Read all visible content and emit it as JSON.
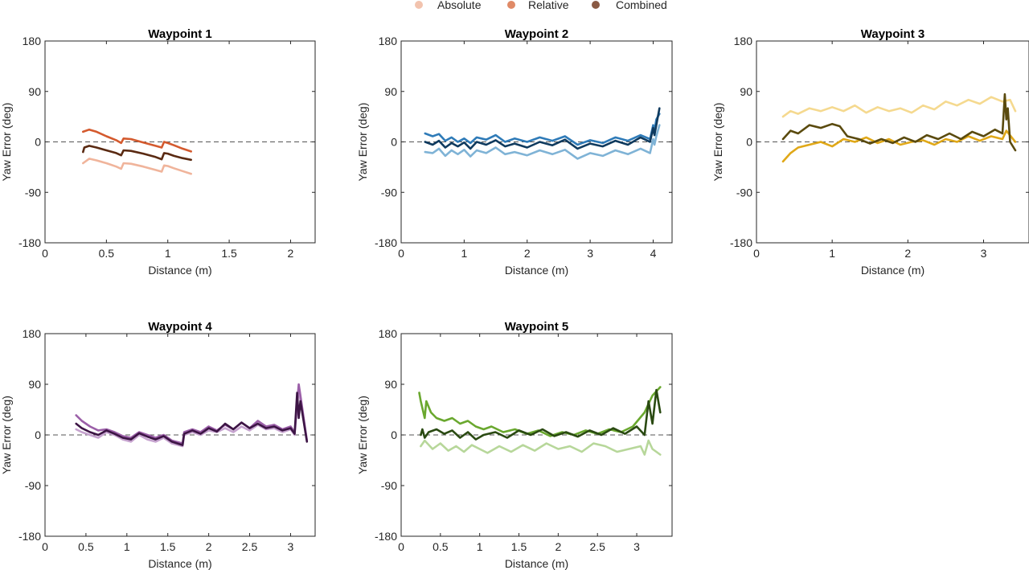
{
  "legend": {
    "items": [
      {
        "label": "Absolute",
        "color": "#f2c3ae"
      },
      {
        "label": "Relative",
        "color": "#e08a67"
      },
      {
        "label": "Combined",
        "color": "#8a5a44"
      }
    ]
  },
  "chart_data": [
    {
      "type": "line",
      "title": "Waypoint 1",
      "xlabel": "Distance (m)",
      "ylabel": "Yaw Error (deg)",
      "xlim": [
        0,
        2.2
      ],
      "ylim": [
        -180,
        180
      ],
      "xticks": [
        0,
        0.5,
        1,
        1.5,
        2
      ],
      "xtick_labels": [
        "0",
        "0.5",
        "1",
        "1.5",
        "2"
      ],
      "yticks": [
        -180,
        -90,
        0,
        90,
        180
      ],
      "ytick_labels": [
        "-180",
        "-90",
        "0",
        "90",
        "180"
      ],
      "reference_line_y": 0,
      "series": [
        {
          "name": "Absolute",
          "color": "#f0b49b",
          "x": [
            0.31,
            0.36,
            0.42,
            0.5,
            0.58,
            0.62,
            0.64,
            0.7,
            0.8,
            0.9,
            0.95,
            0.97,
            1.0,
            1.05,
            1.12,
            1.19
          ],
          "y": [
            -38,
            -30,
            -33,
            -38,
            -44,
            -48,
            -38,
            -39,
            -44,
            -50,
            -53,
            -42,
            -43,
            -47,
            -52,
            -57
          ]
        },
        {
          "name": "Relative",
          "color": "#d45a2e",
          "x": [
            0.31,
            0.36,
            0.42,
            0.5,
            0.58,
            0.62,
            0.64,
            0.7,
            0.8,
            0.9,
            0.95,
            0.97,
            1.0,
            1.05,
            1.12,
            1.19
          ],
          "y": [
            18,
            22,
            18,
            10,
            3,
            -2,
            6,
            5,
            -1,
            -7,
            -10,
            0,
            -2,
            -6,
            -12,
            -17
          ]
        },
        {
          "name": "Combined",
          "color": "#5a2a12",
          "x": [
            0.31,
            0.32,
            0.36,
            0.42,
            0.5,
            0.58,
            0.62,
            0.64,
            0.7,
            0.8,
            0.9,
            0.95,
            0.97,
            1.0,
            1.05,
            1.12,
            1.19
          ],
          "y": [
            -18,
            -10,
            -7,
            -10,
            -15,
            -20,
            -24,
            -15,
            -16,
            -21,
            -27,
            -31,
            -20,
            -21,
            -25,
            -29,
            -32
          ]
        }
      ]
    },
    {
      "type": "line",
      "title": "Waypoint 2",
      "xlabel": "Distance (m)",
      "ylabel": "Yaw Error (deg)",
      "xlim": [
        0,
        4.3
      ],
      "ylim": [
        -180,
        180
      ],
      "xticks": [
        0,
        1,
        2,
        3,
        4
      ],
      "xtick_labels": [
        "0",
        "1",
        "2",
        "3",
        "4"
      ],
      "yticks": [
        -180,
        -90,
        0,
        90,
        180
      ],
      "ytick_labels": [
        "-180",
        "-90",
        "0",
        "90",
        "180"
      ],
      "reference_line_y": 0,
      "series": [
        {
          "name": "Absolute",
          "color": "#7fb3d6",
          "x": [
            0.38,
            0.5,
            0.6,
            0.7,
            0.8,
            0.9,
            1.0,
            1.1,
            1.2,
            1.35,
            1.5,
            1.65,
            1.8,
            2.0,
            2.2,
            2.4,
            2.6,
            2.8,
            3.0,
            3.2,
            3.4,
            3.6,
            3.8,
            3.95,
            4.0,
            4.02,
            4.05,
            4.1
          ],
          "y": [
            -18,
            -20,
            -12,
            -25,
            -15,
            -22,
            -14,
            -26,
            -15,
            -20,
            -10,
            -22,
            -18,
            -24,
            -15,
            -22,
            -14,
            -30,
            -20,
            -25,
            -15,
            -22,
            -12,
            -20,
            5,
            -5,
            10,
            30
          ]
        },
        {
          "name": "Relative",
          "color": "#2f7bb8",
          "x": [
            0.38,
            0.5,
            0.6,
            0.7,
            0.8,
            0.9,
            1.0,
            1.1,
            1.2,
            1.35,
            1.5,
            1.65,
            1.8,
            2.0,
            2.2,
            2.4,
            2.6,
            2.8,
            3.0,
            3.2,
            3.4,
            3.6,
            3.8,
            3.95,
            4.0,
            4.02,
            4.05,
            4.1
          ],
          "y": [
            15,
            10,
            14,
            2,
            8,
            0,
            6,
            -2,
            8,
            4,
            12,
            0,
            6,
            0,
            8,
            2,
            10,
            -5,
            3,
            -2,
            8,
            2,
            12,
            5,
            30,
            20,
            40,
            50
          ]
        },
        {
          "name": "Combined",
          "color": "#0f3a5e",
          "x": [
            0.38,
            0.5,
            0.6,
            0.7,
            0.8,
            0.9,
            1.0,
            1.1,
            1.2,
            1.35,
            1.5,
            1.65,
            1.8,
            2.0,
            2.2,
            2.4,
            2.6,
            2.8,
            3.0,
            3.2,
            3.4,
            3.6,
            3.8,
            3.95,
            4.0,
            4.02,
            4.05,
            4.1
          ],
          "y": [
            0,
            -5,
            2,
            -10,
            -2,
            -8,
            -1,
            -12,
            0,
            -5,
            3,
            -8,
            -3,
            -10,
            0,
            -6,
            4,
            -12,
            -3,
            -8,
            2,
            -5,
            8,
            0,
            25,
            12,
            30,
            60
          ]
        }
      ]
    },
    {
      "type": "line",
      "title": "Waypoint 3",
      "xlabel": "Distance (m)",
      "ylabel": "Yaw Error (deg)",
      "xlim": [
        0,
        3.6
      ],
      "ylim": [
        -180,
        180
      ],
      "xticks": [
        0,
        1,
        2,
        3
      ],
      "xtick_labels": [
        "0",
        "1",
        "2",
        "3"
      ],
      "yticks": [
        -180,
        -90,
        0,
        90,
        180
      ],
      "ytick_labels": [
        "-180",
        "-90",
        "0",
        "90",
        "180"
      ],
      "reference_line_y": 0,
      "series": [
        {
          "name": "Absolute",
          "color": "#f5d98f",
          "x": [
            0.35,
            0.45,
            0.55,
            0.7,
            0.85,
            1.0,
            1.15,
            1.3,
            1.45,
            1.6,
            1.75,
            1.9,
            2.05,
            2.2,
            2.35,
            2.5,
            2.65,
            2.8,
            2.95,
            3.1,
            3.25,
            3.35,
            3.42
          ],
          "y": [
            45,
            55,
            50,
            60,
            55,
            62,
            55,
            65,
            52,
            62,
            55,
            60,
            52,
            65,
            58,
            72,
            65,
            75,
            68,
            80,
            72,
            75,
            55
          ]
        },
        {
          "name": "Relative",
          "color": "#e0a818",
          "x": [
            0.35,
            0.45,
            0.55,
            0.7,
            0.85,
            1.0,
            1.15,
            1.3,
            1.45,
            1.6,
            1.75,
            1.9,
            2.05,
            2.2,
            2.35,
            2.5,
            2.65,
            2.8,
            2.95,
            3.1,
            3.25,
            3.3,
            3.42
          ],
          "y": [
            -35,
            -20,
            -10,
            -5,
            0,
            -8,
            5,
            0,
            8,
            -2,
            5,
            -5,
            0,
            3,
            -5,
            5,
            0,
            10,
            2,
            10,
            5,
            20,
            0
          ]
        },
        {
          "name": "Combined",
          "color": "#5a4a0e",
          "x": [
            0.35,
            0.45,
            0.55,
            0.7,
            0.85,
            1.0,
            1.1,
            1.2,
            1.35,
            1.5,
            1.65,
            1.8,
            1.95,
            2.1,
            2.25,
            2.4,
            2.55,
            2.7,
            2.85,
            3.0,
            3.15,
            3.25,
            3.28,
            3.3,
            3.32,
            3.35,
            3.42
          ],
          "y": [
            5,
            20,
            15,
            30,
            25,
            32,
            28,
            10,
            5,
            -3,
            5,
            -2,
            8,
            0,
            12,
            5,
            15,
            5,
            18,
            10,
            22,
            15,
            85,
            40,
            60,
            0,
            -15
          ]
        }
      ]
    },
    {
      "type": "line",
      "title": "Waypoint 4",
      "xlabel": "Distance (m)",
      "ylabel": "Yaw Error (deg)",
      "xlim": [
        0,
        3.3
      ],
      "ylim": [
        -180,
        180
      ],
      "xticks": [
        0,
        0.5,
        1,
        1.5,
        2,
        2.5,
        3
      ],
      "xtick_labels": [
        "0",
        "0.5",
        "1",
        "1.5",
        "2",
        "2.5",
        "3"
      ],
      "yticks": [
        -180,
        -90,
        0,
        90,
        180
      ],
      "ytick_labels": [
        "-180",
        "-90",
        "0",
        "90",
        "180"
      ],
      "reference_line_y": 0,
      "series": [
        {
          "name": "Absolute",
          "color": "#c6a3cf",
          "x": [
            0.38,
            0.45,
            0.55,
            0.65,
            0.75,
            0.85,
            0.95,
            1.05,
            1.15,
            1.25,
            1.35,
            1.45,
            1.55,
            1.68,
            1.7,
            1.8,
            1.9,
            2.0,
            2.1,
            2.2,
            2.3,
            2.4,
            2.5,
            2.6,
            2.7,
            2.8,
            2.9,
            3.0,
            3.05,
            3.1,
            3.12,
            3.2
          ],
          "y": [
            10,
            5,
            0,
            -5,
            5,
            0,
            -8,
            -12,
            0,
            -8,
            -12,
            -5,
            -15,
            -20,
            0,
            5,
            0,
            8,
            5,
            12,
            5,
            15,
            8,
            18,
            10,
            12,
            5,
            10,
            0,
            85,
            60,
            -10
          ]
        },
        {
          "name": "Relative",
          "color": "#9b5fa8",
          "x": [
            0.38,
            0.45,
            0.55,
            0.65,
            0.75,
            0.85,
            0.95,
            1.05,
            1.15,
            1.25,
            1.35,
            1.45,
            1.55,
            1.68,
            1.7,
            1.8,
            1.9,
            2.0,
            2.1,
            2.2,
            2.3,
            2.4,
            2.5,
            2.6,
            2.7,
            2.8,
            2.9,
            3.0,
            3.05,
            3.1,
            3.12,
            3.2
          ],
          "y": [
            35,
            25,
            15,
            8,
            10,
            5,
            -2,
            -5,
            5,
            0,
            -5,
            0,
            -10,
            -15,
            5,
            10,
            5,
            15,
            8,
            18,
            10,
            22,
            12,
            25,
            15,
            18,
            10,
            15,
            5,
            90,
            70,
            -10
          ]
        },
        {
          "name": "Combined",
          "color": "#3d1545",
          "x": [
            0.38,
            0.45,
            0.55,
            0.65,
            0.75,
            0.85,
            0.95,
            1.05,
            1.15,
            1.25,
            1.35,
            1.45,
            1.55,
            1.68,
            1.7,
            1.8,
            1.9,
            2.0,
            2.1,
            2.2,
            2.3,
            2.4,
            2.5,
            2.6,
            2.7,
            2.8,
            2.9,
            3.0,
            3.05,
            3.08,
            3.1,
            3.12,
            3.2
          ],
          "y": [
            20,
            12,
            5,
            0,
            8,
            2,
            -5,
            -8,
            3,
            -3,
            -8,
            -2,
            -12,
            -18,
            2,
            8,
            2,
            12,
            6,
            20,
            10,
            22,
            12,
            20,
            12,
            15,
            8,
            12,
            2,
            75,
            30,
            60,
            -12
          ]
        }
      ]
    },
    {
      "type": "line",
      "title": "Waypoint 5",
      "xlabel": "Distance (m)",
      "ylabel": "Yaw Error (deg)",
      "xlim": [
        0,
        3.45
      ],
      "ylim": [
        -180,
        180
      ],
      "xticks": [
        0,
        0.5,
        1,
        1.5,
        2,
        2.5,
        3
      ],
      "xtick_labels": [
        "0",
        "0.5",
        "1",
        "1.5",
        "2",
        "2.5",
        "3"
      ],
      "yticks": [
        -180,
        -90,
        0,
        90,
        180
      ],
      "ytick_labels": [
        "-180",
        "-90",
        "0",
        "90",
        "180"
      ],
      "reference_line_y": 0,
      "series": [
        {
          "name": "Absolute",
          "color": "#b7d79a",
          "x": [
            0.25,
            0.3,
            0.4,
            0.5,
            0.6,
            0.7,
            0.8,
            0.9,
            1.0,
            1.1,
            1.25,
            1.4,
            1.55,
            1.7,
            1.85,
            2.0,
            2.15,
            2.3,
            2.45,
            2.6,
            2.75,
            2.9,
            3.05,
            3.1,
            3.15,
            3.2,
            3.25,
            3.3
          ],
          "y": [
            -20,
            -10,
            -25,
            -15,
            -28,
            -20,
            -30,
            -18,
            -25,
            -32,
            -20,
            -30,
            -18,
            -28,
            -15,
            -25,
            -20,
            -30,
            -15,
            -20,
            -30,
            -25,
            -20,
            -35,
            -10,
            -25,
            -30,
            -35
          ]
        },
        {
          "name": "Relative",
          "color": "#6aa82f",
          "x": [
            0.23,
            0.25,
            0.3,
            0.32,
            0.38,
            0.45,
            0.55,
            0.65,
            0.75,
            0.85,
            0.95,
            1.05,
            1.15,
            1.3,
            1.45,
            1.6,
            1.75,
            1.9,
            2.05,
            2.2,
            2.35,
            2.5,
            2.65,
            2.8,
            2.95,
            3.1,
            3.2,
            3.3
          ],
          "y": [
            75,
            60,
            30,
            60,
            40,
            30,
            25,
            30,
            20,
            25,
            15,
            10,
            15,
            5,
            10,
            2,
            8,
            -2,
            5,
            0,
            8,
            2,
            10,
            5,
            15,
            40,
            70,
            85
          ]
        },
        {
          "name": "Combined",
          "color": "#2a4a12",
          "x": [
            0.25,
            0.27,
            0.3,
            0.35,
            0.45,
            0.55,
            0.65,
            0.75,
            0.85,
            0.95,
            1.05,
            1.2,
            1.35,
            1.5,
            1.65,
            1.8,
            1.95,
            2.1,
            2.25,
            2.4,
            2.55,
            2.7,
            2.85,
            3.0,
            3.1,
            3.15,
            3.2,
            3.25,
            3.3
          ],
          "y": [
            0,
            10,
            -5,
            5,
            10,
            2,
            8,
            -5,
            5,
            -8,
            0,
            5,
            -5,
            8,
            0,
            10,
            -2,
            5,
            -3,
            8,
            0,
            12,
            2,
            15,
            0,
            60,
            20,
            80,
            40
          ]
        }
      ]
    }
  ]
}
